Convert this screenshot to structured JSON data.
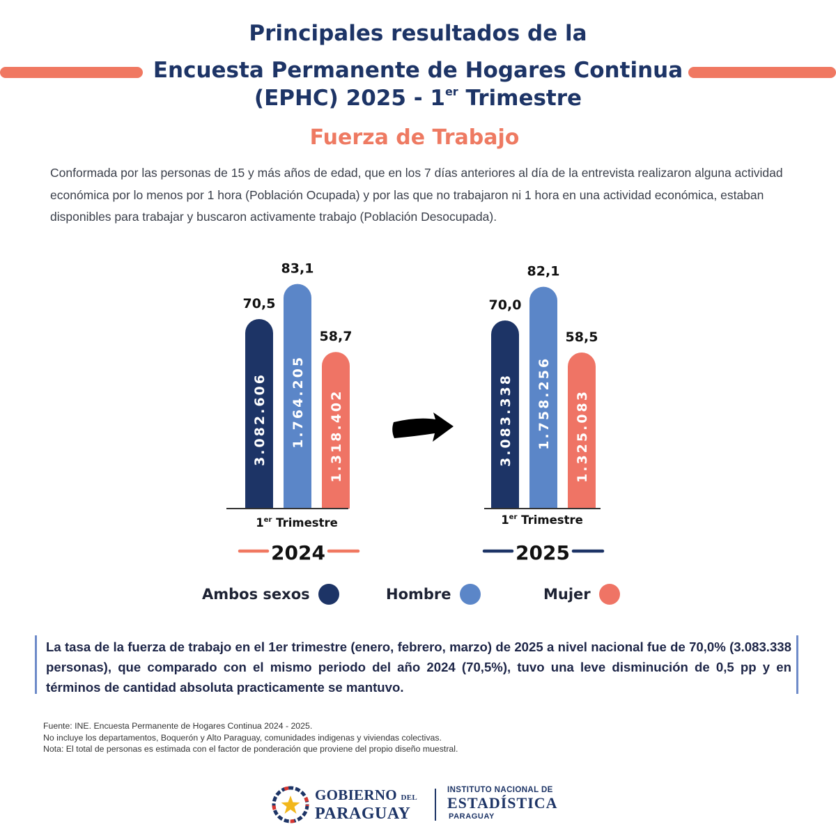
{
  "header": {
    "line1": "Principales resultados de la",
    "line2": "Encuesta Permanente de Hogares Continua",
    "line3_main": "(EPHC) 2025 - 1",
    "line3_sup": "er",
    "line3_end": " Trimestre",
    "subtitle": "Fuerza de Trabajo",
    "intro": "Conformada por las personas de 15 y más años de edad, que en los 7 días anteriores al día de la entrevista realizaron alguna actividad económica por lo menos por 1 hora (Población Ocupada) y por las que no trabajaron ni 1 hora en una actividad económica, estaban disponibles para trabajar y buscaron activamente trabajo (Población Desocupada)."
  },
  "colors": {
    "ambos": "#1d3466",
    "hombre": "#5b86c8",
    "mujer": "#ef7465",
    "accent": "#f07861",
    "navy": "#1d3466"
  },
  "chart_data": {
    "type": "bar",
    "series_names": [
      "Ambos sexos",
      "Hombre",
      "Mujer"
    ],
    "groups": [
      {
        "year": "2024",
        "period_main": "1",
        "period_sup": "er",
        "period_rest": " Trimestre",
        "rates": [
          70.5,
          83.1,
          58.7
        ],
        "rate_labels": [
          "70,5",
          "83,1",
          "58,7"
        ],
        "persons": [
          "3.082.606",
          "1.764.205",
          "1.318.402"
        ]
      },
      {
        "year": "2025",
        "period_main": "1",
        "period_sup": "er",
        "period_rest": " Trimestre",
        "rates": [
          70.0,
          82.1,
          58.5
        ],
        "rate_labels": [
          "70,0",
          "82,1",
          "58,5"
        ],
        "persons": [
          "3.083.338",
          "1.758.256",
          "1.325.083"
        ]
      }
    ]
  },
  "legend": [
    {
      "label": "Ambos sexos",
      "color": "#1d3466"
    },
    {
      "label": "Hombre",
      "color": "#5b86c8"
    },
    {
      "label": "Mujer",
      "color": "#ef7465"
    }
  ],
  "note": "La tasa de la fuerza de trabajo en el 1er trimestre (enero, febrero, marzo) de 2025 a nivel nacional fue de 70,0% (3.083.338 personas), que comparado con el mismo periodo del año 2024  (70,5%), tuvo una leve disminución de 0,5 pp y en términos de cantidad absoluta practicamente se mantuvo.",
  "footnotes": {
    "source": "Fuente: INE. Encuesta Permanente de Hogares Continua 2024 - 2025.",
    "excl": "No incluye los departamentos, Boquerón y Alto Paraguay, comunidades indigenas y viviendas colectivas.",
    "nota": "Nota: El total de personas es estimada con el factor de ponderación que proviene del propio diseño muestral."
  },
  "logo": {
    "gob_1": "GOBIERNO",
    "gob_del": "DEL",
    "gob_2": "PARAGUAY",
    "ine_1": "INSTITUTO NACIONAL DE",
    "ine_2": "ESTADÍSTICA",
    "ine_3": "PARAGUAY"
  }
}
